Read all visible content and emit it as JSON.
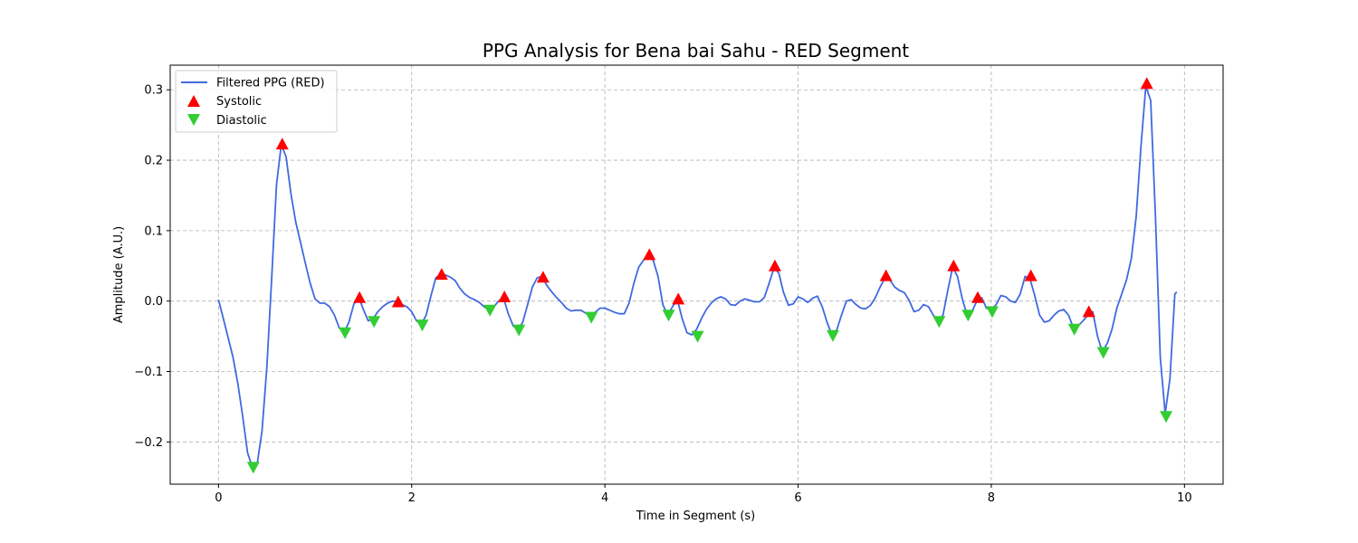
{
  "chart_data": {
    "type": "line",
    "title": "PPG Analysis for Bena bai Sahu - RED Segment",
    "xlabel": "Time in Segment (s)",
    "ylabel": "Amplitude (A.U.)",
    "xlim": [
      -0.5,
      10.4
    ],
    "ylim": [
      -0.26,
      0.335
    ],
    "xticks": [
      0,
      2,
      4,
      6,
      8,
      10
    ],
    "xtick_labels": [
      "0",
      "2",
      "4",
      "6",
      "8",
      "10"
    ],
    "yticks": [
      -0.2,
      -0.1,
      0.0,
      0.1,
      0.2,
      0.3
    ],
    "ytick_labels": [
      "−0.2",
      "−0.1",
      "0.0",
      "0.1",
      "0.2",
      "0.3"
    ],
    "grid": true,
    "legend": "top-left",
    "colors": {
      "signal": "#4169e1",
      "systolic": "#ff0000",
      "diastolic": "#32cd32"
    },
    "series": [
      {
        "name": "Filtered PPG (RED)",
        "style": "line",
        "x": [
          0,
          0.05,
          0.1,
          0.15,
          0.2,
          0.25,
          0.3,
          0.35,
          0.4,
          0.45,
          0.5,
          0.55,
          0.6,
          0.65,
          0.7,
          0.75,
          0.8,
          0.85,
          0.9,
          0.95,
          1.0,
          1.05,
          1.1,
          1.15,
          1.2,
          1.25,
          1.3,
          1.35,
          1.4,
          1.45,
          1.5,
          1.55,
          1.6,
          1.65,
          1.7,
          1.75,
          1.8,
          1.85,
          1.9,
          1.95,
          2.0,
          2.05,
          2.1,
          2.15,
          2.2,
          2.25,
          2.3,
          2.35,
          2.4,
          2.45,
          2.5,
          2.55,
          2.6,
          2.65,
          2.7,
          2.75,
          2.8,
          2.85,
          2.9,
          2.95,
          3.0,
          3.05,
          3.1,
          3.15,
          3.2,
          3.25,
          3.3,
          3.35,
          3.4,
          3.45,
          3.5,
          3.55,
          3.6,
          3.65,
          3.7,
          3.75,
          3.8,
          3.85,
          3.9,
          3.95,
          4.0,
          4.05,
          4.1,
          4.15,
          4.2,
          4.25,
          4.3,
          4.35,
          4.4,
          4.45,
          4.5,
          4.55,
          4.6,
          4.65,
          4.7,
          4.75,
          4.8,
          4.85,
          4.9,
          4.95,
          5.0,
          5.05,
          5.1,
          5.15,
          5.2,
          5.25,
          5.3,
          5.35,
          5.4,
          5.45,
          5.5,
          5.55,
          5.6,
          5.65,
          5.7,
          5.75,
          5.8,
          5.85,
          5.9,
          5.95,
          6.0,
          6.05,
          6.1,
          6.15,
          6.2,
          6.25,
          6.3,
          6.35,
          6.4,
          6.45,
          6.5,
          6.55,
          6.6,
          6.65,
          6.7,
          6.75,
          6.8,
          6.85,
          6.9,
          6.95,
          7.0,
          7.05,
          7.1,
          7.15,
          7.2,
          7.25,
          7.3,
          7.35,
          7.4,
          7.45,
          7.5,
          7.55,
          7.6,
          7.65,
          7.7,
          7.75,
          7.8,
          7.85,
          7.9,
          7.95,
          8.0,
          8.05,
          8.1,
          8.15,
          8.2,
          8.25,
          8.3,
          8.35,
          8.4,
          8.45,
          8.5,
          8.55,
          8.6,
          8.65,
          8.7,
          8.75,
          8.8,
          8.85,
          8.9,
          8.95,
          9.0,
          9.05,
          9.1,
          9.15,
          9.2,
          9.25,
          9.3,
          9.35,
          9.4,
          9.45,
          9.5,
          9.55,
          9.6,
          9.65,
          9.7,
          9.75,
          9.8,
          9.85,
          9.9,
          9.92
        ],
        "y": [
          0.002,
          -0.025,
          -0.052,
          -0.08,
          -0.117,
          -0.163,
          -0.215,
          -0.236,
          -0.232,
          -0.185,
          -0.095,
          0.03,
          0.165,
          0.222,
          0.205,
          0.152,
          0.112,
          0.083,
          0.053,
          0.025,
          0.003,
          -0.003,
          -0.003,
          -0.008,
          -0.02,
          -0.038,
          -0.045,
          -0.03,
          -0.005,
          0.006,
          -0.012,
          -0.028,
          -0.025,
          -0.015,
          -0.008,
          -0.003,
          0.0,
          -0.001,
          -0.005,
          -0.008,
          -0.015,
          -0.028,
          -0.033,
          -0.02,
          0.008,
          0.033,
          0.038,
          0.037,
          0.034,
          0.029,
          0.018,
          0.01,
          0.005,
          0.002,
          -0.002,
          -0.008,
          -0.013,
          -0.008,
          0.0,
          0.005,
          -0.018,
          -0.035,
          -0.041,
          -0.03,
          -0.005,
          0.02,
          0.033,
          0.035,
          0.022,
          0.013,
          0.005,
          -0.002,
          -0.01,
          -0.014,
          -0.013,
          -0.013,
          -0.017,
          -0.022,
          -0.016,
          -0.01,
          -0.01,
          -0.013,
          -0.016,
          -0.018,
          -0.018,
          -0.003,
          0.025,
          0.048,
          0.058,
          0.065,
          0.058,
          0.035,
          -0.005,
          -0.02,
          -0.008,
          0.002,
          -0.025,
          -0.045,
          -0.048,
          -0.04,
          -0.025,
          -0.012,
          -0.003,
          0.003,
          0.006,
          0.003,
          -0.005,
          -0.006,
          0.0,
          0.003,
          0.001,
          -0.001,
          -0.001,
          0.005,
          0.025,
          0.047,
          0.04,
          0.012,
          -0.006,
          -0.004,
          0.006,
          0.003,
          -0.002,
          0.004,
          0.007,
          -0.008,
          -0.03,
          -0.048,
          -0.041,
          -0.02,
          0.0,
          0.002,
          -0.005,
          -0.01,
          -0.011,
          -0.006,
          0.005,
          0.02,
          0.033,
          0.03,
          0.02,
          0.015,
          0.012,
          0.001,
          -0.015,
          -0.013,
          -0.005,
          -0.008,
          -0.02,
          -0.028,
          -0.02,
          0.015,
          0.048,
          0.035,
          0.003,
          -0.02,
          -0.015,
          0.0,
          0.005,
          -0.01,
          -0.012,
          -0.005,
          0.008,
          0.006,
          0.0,
          -0.002,
          0.01,
          0.035,
          0.032,
          0.008,
          -0.02,
          -0.03,
          -0.028,
          -0.02,
          -0.014,
          -0.012,
          -0.02,
          -0.038,
          -0.035,
          -0.028,
          -0.02,
          -0.015,
          -0.05,
          -0.072,
          -0.06,
          -0.04,
          -0.01,
          0.01,
          0.03,
          0.06,
          0.12,
          0.22,
          0.305,
          0.285,
          0.12,
          -0.08,
          -0.16,
          -0.11,
          0.01,
          0.013
        ]
      },
      {
        "name": "Systolic",
        "style": "marker-up",
        "x": [
          0.66,
          1.46,
          1.86,
          2.31,
          2.96,
          3.36,
          4.46,
          4.76,
          5.76,
          6.91,
          7.61,
          7.86,
          8.41,
          9.01,
          9.61
        ],
        "y": [
          0.223,
          0.005,
          -0.001,
          0.038,
          0.006,
          0.034,
          0.066,
          0.003,
          0.05,
          0.036,
          0.05,
          0.005,
          0.036,
          -0.015,
          0.309
        ]
      },
      {
        "name": "Diastolic",
        "style": "marker-down",
        "x": [
          0.36,
          1.31,
          1.61,
          2.11,
          2.81,
          3.11,
          3.86,
          4.66,
          4.96,
          6.36,
          7.46,
          7.76,
          8.01,
          8.86,
          9.16,
          9.81
        ],
        "y": [
          -0.236,
          -0.045,
          -0.029,
          -0.034,
          -0.013,
          -0.041,
          -0.023,
          -0.02,
          -0.05,
          -0.049,
          -0.029,
          -0.02,
          -0.015,
          -0.04,
          -0.073,
          -0.164
        ]
      }
    ]
  }
}
